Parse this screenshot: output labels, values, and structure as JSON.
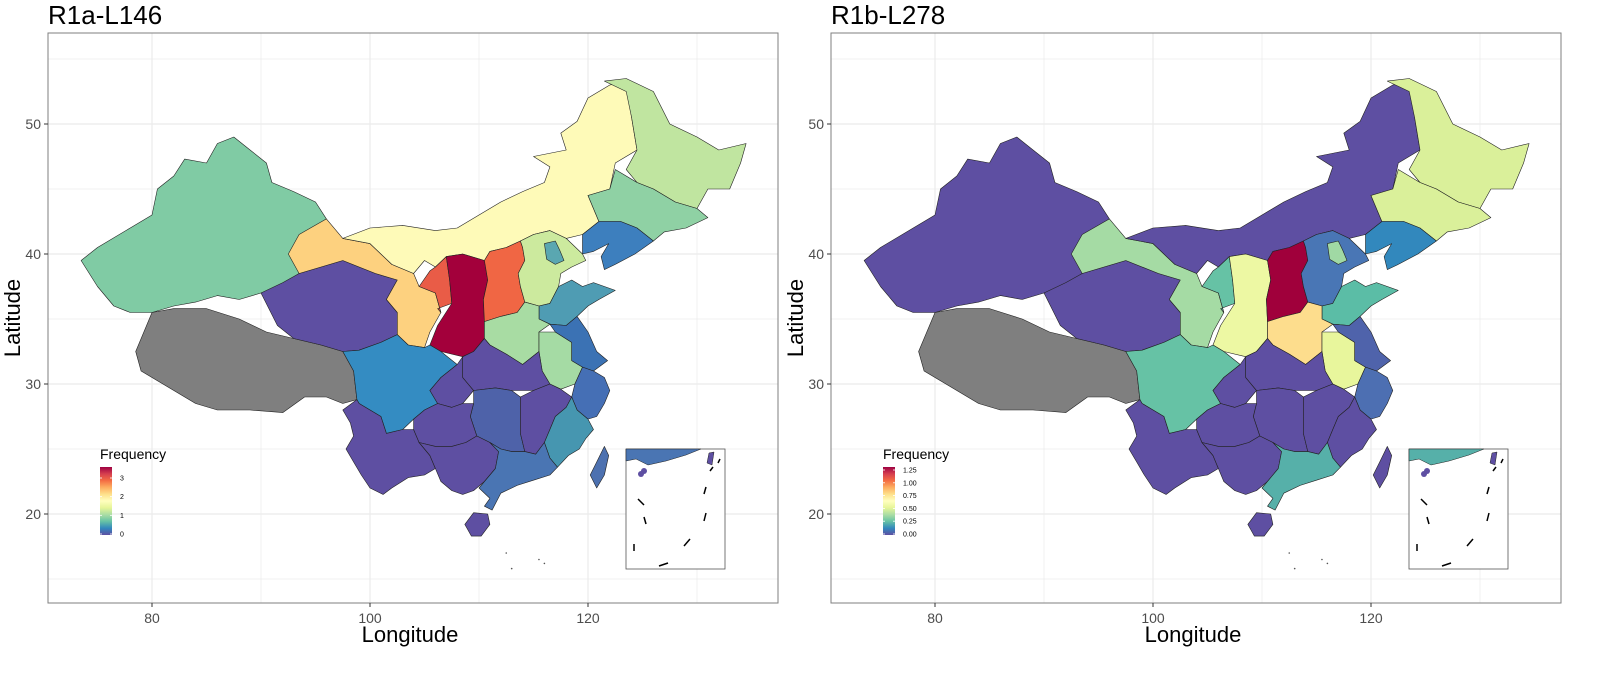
{
  "panels": [
    {
      "id": "left",
      "title": "R1a-L146",
      "xlabel": "Longitude",
      "ylabel": "Latitude",
      "x_ticks": [
        "80",
        "100",
        "120"
      ],
      "y_ticks": [
        "20",
        "30",
        "40",
        "50"
      ],
      "legend": {
        "title": "Frequency",
        "ticks": [
          "3",
          "2",
          "1",
          "0"
        ],
        "placement": "bottom-left"
      },
      "missing_color": "#7f7f7f",
      "regions": [
        {
          "name": "xinjiang",
          "color": "#80cba4"
        },
        {
          "name": "tibet",
          "color": "#7f7f7f"
        },
        {
          "name": "qinghai",
          "color": "#5e4fa2"
        },
        {
          "name": "gansu",
          "color": "#fdd17f"
        },
        {
          "name": "inner-mongolia",
          "color": "#fefab8"
        },
        {
          "name": "heilongjiang",
          "color": "#c0e5a0"
        },
        {
          "name": "jilin",
          "color": "#8fd1a4"
        },
        {
          "name": "liaoning",
          "color": "#3d7fbe"
        },
        {
          "name": "ningxia",
          "color": "#e95c47"
        },
        {
          "name": "shaanxi",
          "color": "#a3003b"
        },
        {
          "name": "shanxi",
          "color": "#f06644"
        },
        {
          "name": "hebei",
          "color": "#ccea9e"
        },
        {
          "name": "beijing",
          "color": "#5aa7b1"
        },
        {
          "name": "shandong",
          "color": "#4f9cb3"
        },
        {
          "name": "henan",
          "color": "#a8dca3"
        },
        {
          "name": "anhui",
          "color": "#a5dba4"
        },
        {
          "name": "jiangsu",
          "color": "#3b72b4"
        },
        {
          "name": "zhejiang",
          "color": "#456fb5"
        },
        {
          "name": "sichuan",
          "color": "#348cc2"
        },
        {
          "name": "chongqing",
          "color": "#5e4fa2"
        },
        {
          "name": "hubei",
          "color": "#5e4fa2"
        },
        {
          "name": "hunan",
          "color": "#4e62a9"
        },
        {
          "name": "jiangxi",
          "color": "#5e4fa2"
        },
        {
          "name": "fujian",
          "color": "#4696b0"
        },
        {
          "name": "yunnan",
          "color": "#5e4fa2"
        },
        {
          "name": "guizhou",
          "color": "#5e4fa2"
        },
        {
          "name": "guangxi",
          "color": "#5e4fa2"
        },
        {
          "name": "guangdong",
          "color": "#4a75b3"
        },
        {
          "name": "hainan",
          "color": "#5e4fa2"
        },
        {
          "name": "taiwan",
          "color": "#4d71b0"
        }
      ]
    },
    {
      "id": "right",
      "title": "R1b-L278",
      "xlabel": "Longitude",
      "ylabel": "Latitude",
      "x_ticks": [
        "80",
        "100",
        "120"
      ],
      "y_ticks": [
        "20",
        "30",
        "40",
        "50"
      ],
      "legend": {
        "title": "Frequency",
        "ticks": [
          "1.25",
          "1.00",
          "0.75",
          "0.50",
          "0.25",
          "0.00"
        ],
        "placement": "bottom-left"
      },
      "missing_color": "#7f7f7f",
      "regions": [
        {
          "name": "xinjiang",
          "color": "#5e4fa2"
        },
        {
          "name": "tibet",
          "color": "#7f7f7f"
        },
        {
          "name": "qinghai",
          "color": "#5e4fa2"
        },
        {
          "name": "gansu",
          "color": "#a5dba4"
        },
        {
          "name": "inner-mongolia",
          "color": "#5e4fa2"
        },
        {
          "name": "heilongjiang",
          "color": "#daf09a"
        },
        {
          "name": "jilin",
          "color": "#daf09a"
        },
        {
          "name": "liaoning",
          "color": "#3288bd"
        },
        {
          "name": "ningxia",
          "color": "#66c2a5"
        },
        {
          "name": "shaanxi",
          "color": "#edf8a3"
        },
        {
          "name": "shanxi",
          "color": "#a0003b"
        },
        {
          "name": "hebei",
          "color": "#4976b5"
        },
        {
          "name": "beijing",
          "color": "#a0d9a4"
        },
        {
          "name": "shandong",
          "color": "#5bbda6"
        },
        {
          "name": "henan",
          "color": "#fddd8d"
        },
        {
          "name": "anhui",
          "color": "#e8f69c"
        },
        {
          "name": "jiangsu",
          "color": "#4f63ab"
        },
        {
          "name": "zhejiang",
          "color": "#4d6fb2"
        },
        {
          "name": "sichuan",
          "color": "#66c2a5"
        },
        {
          "name": "chongqing",
          "color": "#5e4fa2"
        },
        {
          "name": "hubei",
          "color": "#5e4fa2"
        },
        {
          "name": "hunan",
          "color": "#5e4fa2"
        },
        {
          "name": "jiangxi",
          "color": "#5e4fa2"
        },
        {
          "name": "fujian",
          "color": "#5e4fa2"
        },
        {
          "name": "yunnan",
          "color": "#5e4fa2"
        },
        {
          "name": "guizhou",
          "color": "#5e4fa2"
        },
        {
          "name": "guangxi",
          "color": "#5e4fa2"
        },
        {
          "name": "guangdong",
          "color": "#56b0a9"
        },
        {
          "name": "hainan",
          "color": "#5e4fa2"
        },
        {
          "name": "taiwan",
          "color": "#5e4fa2"
        }
      ]
    }
  ],
  "colors": {
    "panel_border": "#7f7f7f",
    "gridline": "#ebebeb",
    "region_stroke": "#222222",
    "palette": [
      "#9e0142",
      "#d53e4f",
      "#f46d43",
      "#fdae61",
      "#fee08b",
      "#ffffbf",
      "#e6f598",
      "#abdda4",
      "#66c2a5",
      "#3288bd",
      "#5e4fa2"
    ]
  }
}
